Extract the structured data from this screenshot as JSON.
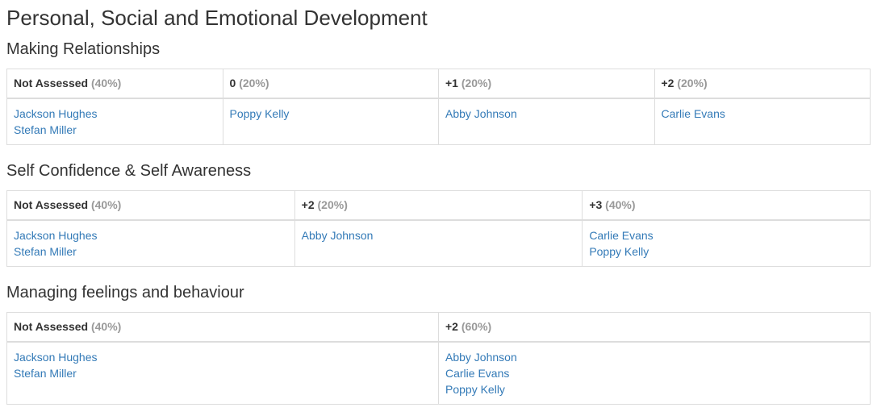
{
  "page_title": "Personal, Social and Emotional Development",
  "colors": {
    "link": "#337ab7",
    "heading": "#333333",
    "percent": "#999999",
    "border": "#dddddd",
    "background": "#ffffff"
  },
  "sections": [
    {
      "heading": "Making Relationships",
      "columns": [
        {
          "label": "Not Assessed",
          "percent": "(40%)",
          "students": [
            "Jackson Hughes",
            "Stefan Miller"
          ]
        },
        {
          "label": "0",
          "percent": "(20%)",
          "students": [
            "Poppy Kelly"
          ]
        },
        {
          "label": "+1",
          "percent": "(20%)",
          "students": [
            "Abby Johnson"
          ]
        },
        {
          "label": "+2",
          "percent": "(20%)",
          "students": [
            "Carlie Evans"
          ]
        }
      ]
    },
    {
      "heading": "Self Confidence & Self Awareness",
      "columns": [
        {
          "label": "Not Assessed",
          "percent": "(40%)",
          "students": [
            "Jackson Hughes",
            "Stefan Miller"
          ]
        },
        {
          "label": "+2",
          "percent": "(20%)",
          "students": [
            "Abby Johnson"
          ]
        },
        {
          "label": "+3",
          "percent": "(40%)",
          "students": [
            "Carlie Evans",
            "Poppy Kelly"
          ]
        }
      ]
    },
    {
      "heading": "Managing feelings and behaviour",
      "columns": [
        {
          "label": "Not Assessed",
          "percent": "(40%)",
          "students": [
            "Jackson Hughes",
            "Stefan Miller"
          ]
        },
        {
          "label": "+2",
          "percent": "(60%)",
          "students": [
            "Abby Johnson",
            "Carlie Evans",
            "Poppy Kelly"
          ]
        }
      ]
    }
  ]
}
